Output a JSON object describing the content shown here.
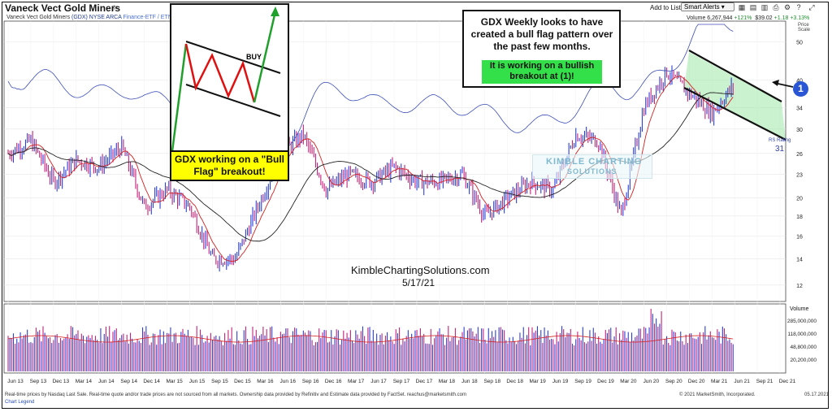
{
  "header": {
    "title": "Vaneck Vect Gold Miners",
    "subtitle_name": "Vaneck Vect Gold Miners",
    "subtitle_ticker": "(GDX) NYSE ARCA",
    "subtitle_type": "Finance-ETF / ETN",
    "add_to_list": "Add to List:",
    "smart_alerts": "Smart Alerts",
    "volume_label": "Volume 6,267,944",
    "volume_change": "+121%",
    "price": "$39.02",
    "change": "+1.18",
    "change_pct": "+3.13%"
  },
  "annotations": {
    "main_text": "GDX Weekly looks to have created a bull flag pattern over the past few months.",
    "green_text": "It is working on a bullish breakout at (1)!",
    "yellow_text": "GDX working on a \"Bull Flag\" breakout!",
    "buy_label": "BUY",
    "marker": "1",
    "watermark": "KimbleChartingSolutions.com",
    "date": "5/17/21",
    "logo_line1": "KIMBLE CHARTING",
    "logo_line2": "SOLUTIONS",
    "rs_label": "RS Rating",
    "rs_value": "31"
  },
  "axis": {
    "price_scale_label": "Price Scale",
    "volume_label": "Volume"
  },
  "footer": {
    "note": "Real-time prices by Nasdaq Last Sale. Real-time quote and/or trade prices are not sourced from all markets. Ownership data provided by Refinitiv and Estimate data provided by FactSet. reachus@marketsmith.com",
    "legend": "Chart Legend",
    "copyright": "© 2021 MarketSmith, Incorporated.",
    "date": "05.17.2021"
  },
  "colors": {
    "up_bar": "#2b3fd6",
    "down_bar": "#c2227a",
    "ma_red": "#d42020",
    "ma_black": "#222222",
    "rs_line": "#3d4fb8",
    "flag_fill": "#9fe8a8",
    "vol_avg": "#d42020"
  },
  "chart_data": {
    "type": "candlestick",
    "title": "Vaneck Vect Gold Miners (GDX) weekly",
    "y_scale": "log",
    "y_ticks": [
      12,
      14,
      16,
      18,
      20,
      23,
      26,
      30,
      34,
      40,
      50
    ],
    "x_ticks": [
      "Jun 13",
      "Sep 13",
      "Dec 13",
      "Mar 14",
      "Jun 14",
      "Sep 14",
      "Dec 14",
      "Mar 15",
      "Jun 15",
      "Sep 15",
      "Dec 15",
      "Mar 16",
      "Jun 16",
      "Sep 16",
      "Dec 16",
      "Mar 17",
      "Jun 17",
      "Sep 17",
      "Dec 17",
      "Mar 18",
      "Jun 18",
      "Sep 18",
      "Dec 18",
      "Mar 19",
      "Jun 19",
      "Sep 19",
      "Dec 19",
      "Mar 20",
      "Jun 20",
      "Sep 20",
      "Dec 20",
      "Mar 21",
      "Jun 21",
      "Sep 21",
      "Dec 21"
    ],
    "price_path": [
      [
        "Jun 13",
        26
      ],
      [
        "Sep 13",
        28
      ],
      [
        "Dec 13",
        22
      ],
      [
        "Mar 14",
        25
      ],
      [
        "Jun 14",
        24
      ],
      [
        "Sep 14",
        27
      ],
      [
        "Dec 14",
        19
      ],
      [
        "Mar 15",
        21
      ],
      [
        "Jun 15",
        19
      ],
      [
        "Sep 15",
        14
      ],
      [
        "Dec 15",
        14
      ],
      [
        "Mar 16",
        19
      ],
      [
        "Jun 16",
        26
      ],
      [
        "Sep 16",
        29
      ],
      [
        "Dec 16",
        21
      ],
      [
        "Mar 17",
        23
      ],
      [
        "Jun 17",
        22
      ],
      [
        "Sep 17",
        24
      ],
      [
        "Dec 17",
        22
      ],
      [
        "Mar 18",
        22
      ],
      [
        "Jun 18",
        23
      ],
      [
        "Sep 18",
        18
      ],
      [
        "Dec 18",
        20
      ],
      [
        "Mar 19",
        22
      ],
      [
        "Jun 19",
        21
      ],
      [
        "Sep 19",
        29
      ],
      [
        "Dec 19",
        28
      ],
      [
        "Mar 20",
        18
      ],
      [
        "Jun 20",
        34
      ],
      [
        "Sep 20",
        42
      ],
      [
        "Dec 20",
        37
      ],
      [
        "Mar 21",
        33
      ],
      [
        "Jun 21",
        39
      ]
    ],
    "rs_rating": 31,
    "volume_ticks": [
      "285,000,000",
      "118,000,000",
      "48,800,000",
      "20,200,000"
    ]
  }
}
